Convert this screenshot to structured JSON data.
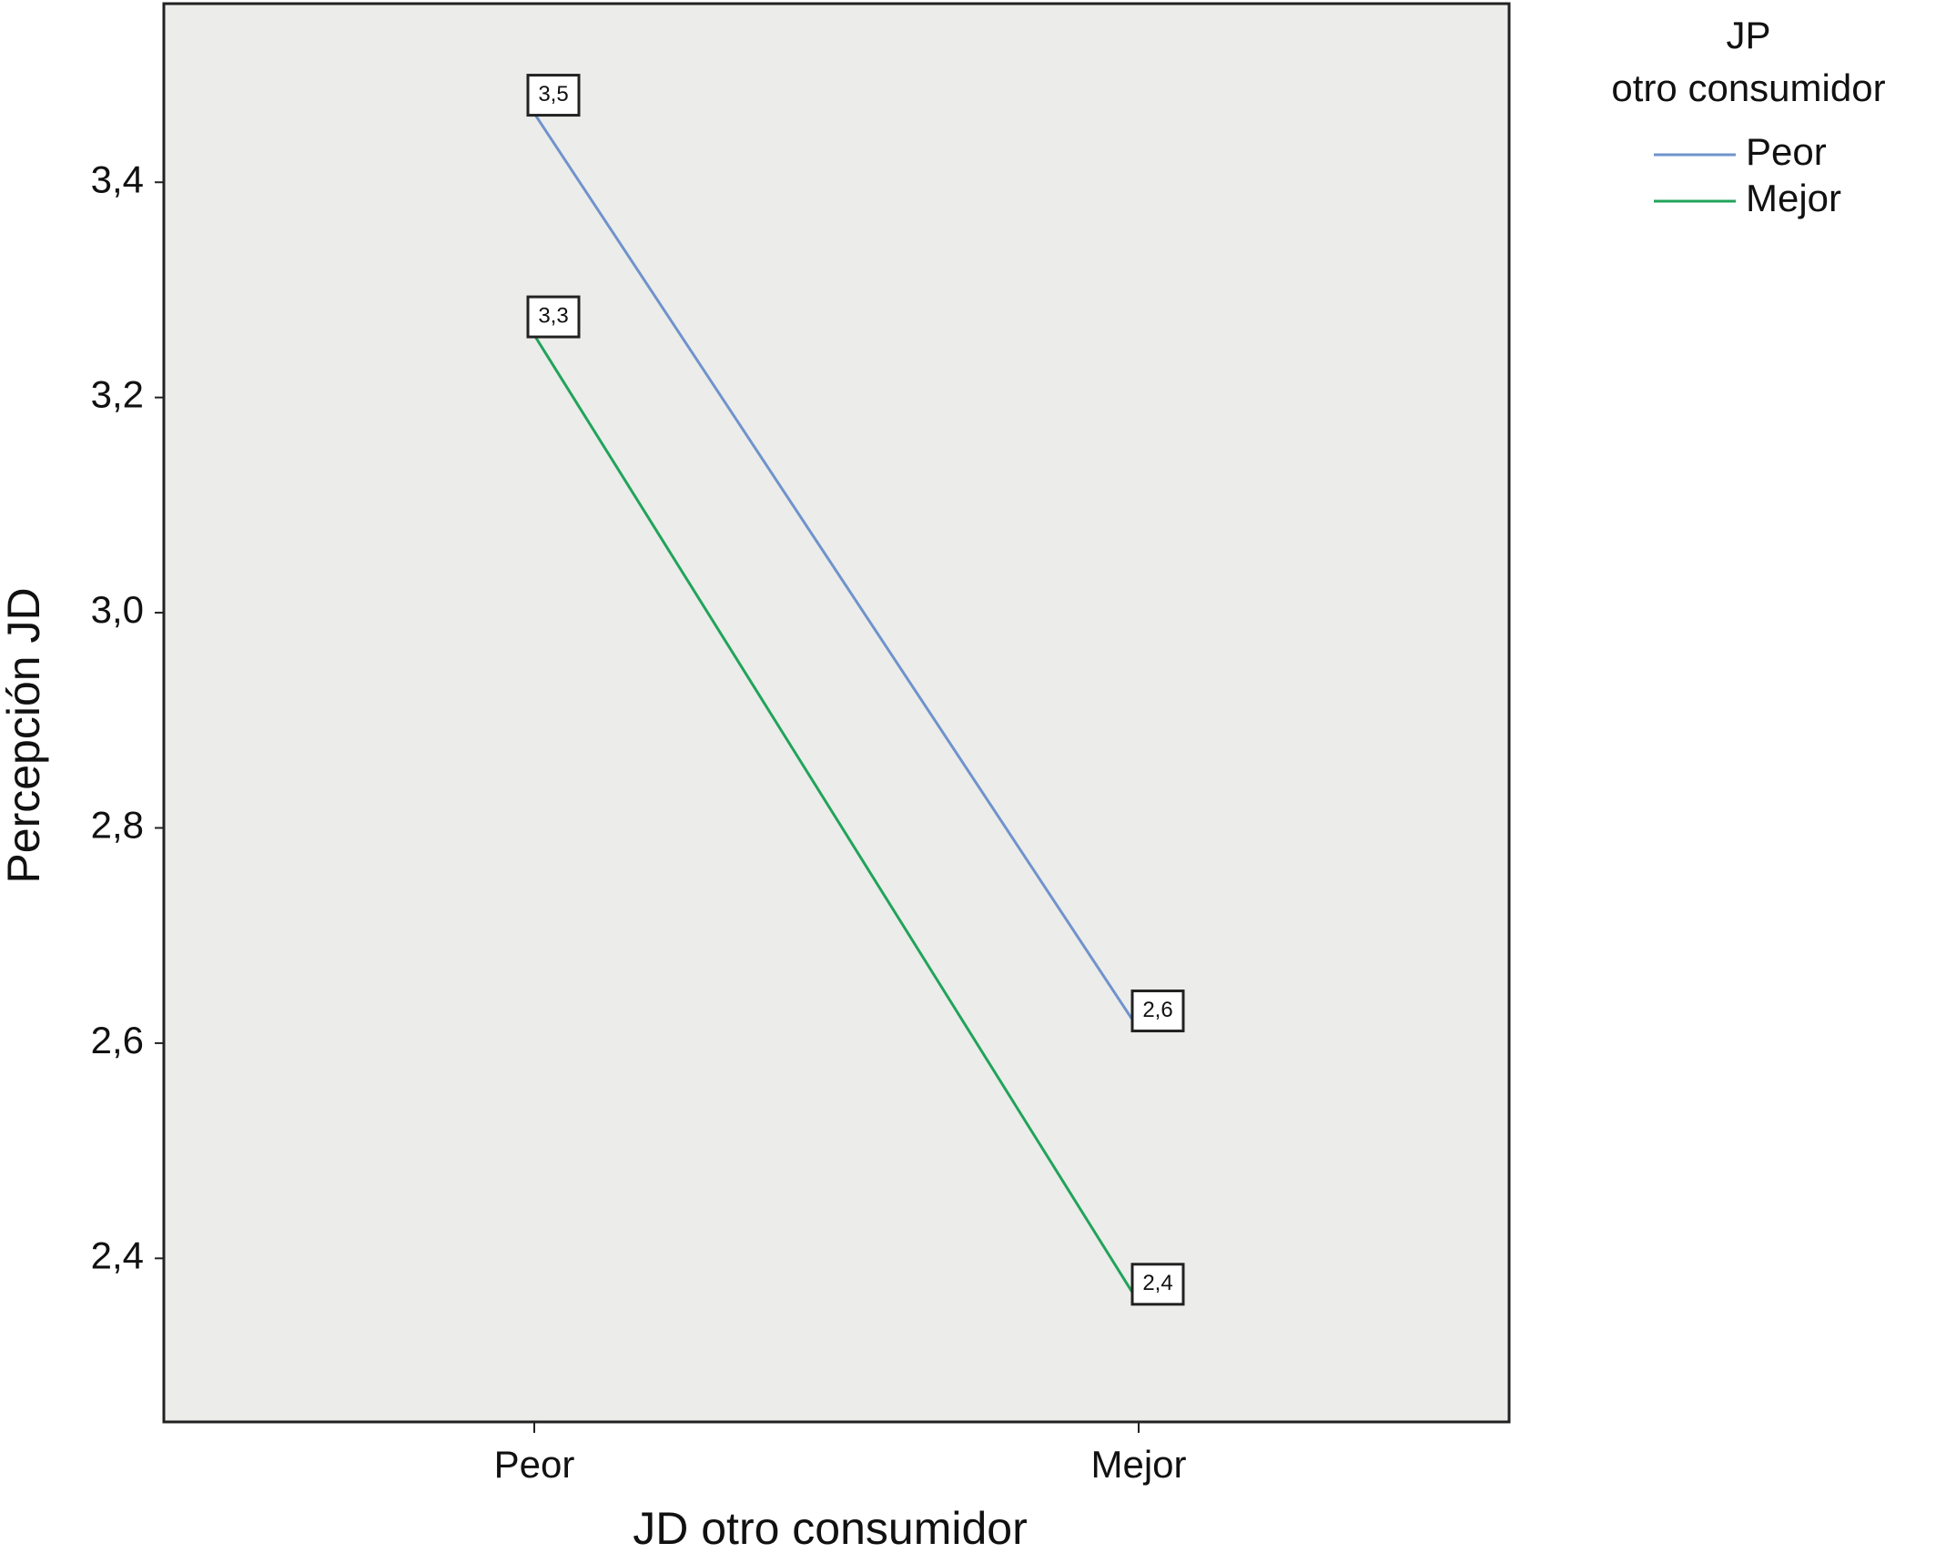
{
  "chart_data": {
    "type": "line",
    "x_label": "JD otro consumidor",
    "y_label": "Percepción JD",
    "legend_title": [
      "JP",
      "otro consumidor"
    ],
    "categories": [
      "Peor",
      "Mejor"
    ],
    "series": [
      {
        "name": "Peor",
        "color": "#6f93cc",
        "values": [
          3.464,
          2.613
        ],
        "value_labels": [
          "3,5",
          "2,6"
        ]
      },
      {
        "name": "Mejor",
        "color": "#21a35a",
        "values": [
          3.258,
          2.359
        ],
        "value_labels": [
          "3,3",
          "2,4"
        ]
      }
    ],
    "ylim": [
      2.248,
      3.566
    ],
    "yticks": [
      {
        "value": 2.4,
        "label": "2,4"
      },
      {
        "value": 2.6,
        "label": "2,6"
      },
      {
        "value": 2.8,
        "label": "2,8"
      },
      {
        "value": 3.0,
        "label": "3,0"
      },
      {
        "value": 3.2,
        "label": "3,2"
      },
      {
        "value": 3.4,
        "label": "3,4"
      }
    ],
    "legend": "top-right"
  }
}
